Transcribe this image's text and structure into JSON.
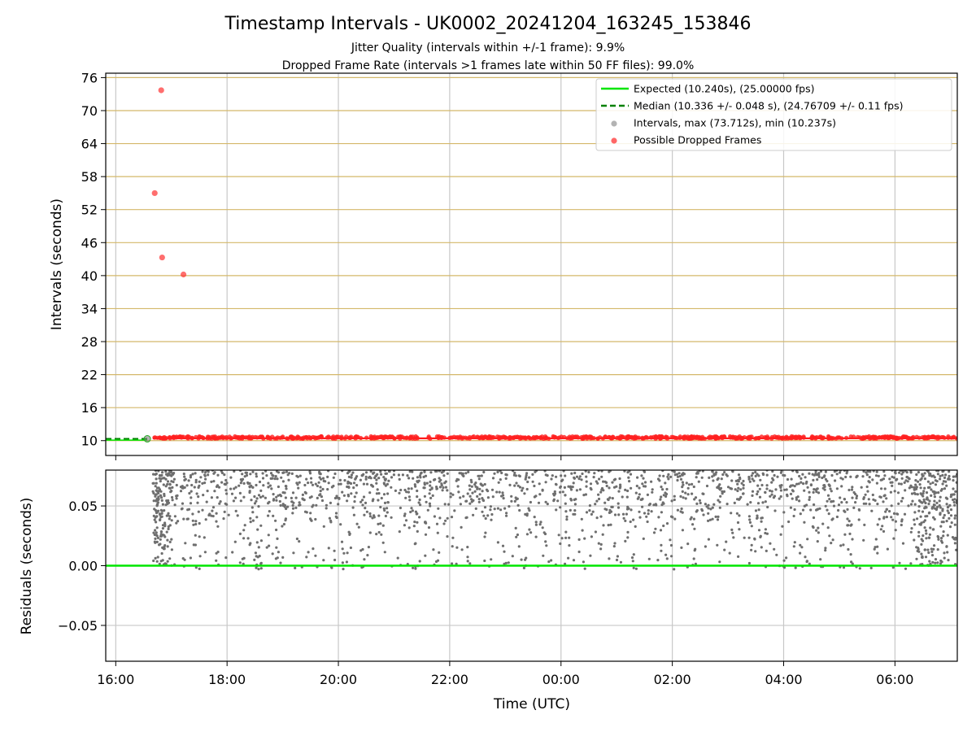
{
  "chart_data": {
    "type": "scatter",
    "title": "Timestamp Intervals - UK0002_20241204_163245_153846",
    "subtitle_1": "Jitter Quality (intervals within +/-1 frame): 9.9%",
    "subtitle_2": "Dropped Frame Rate (intervals >1 frames late within 50 FF files): 99.0%",
    "xlabel": "Time (UTC)",
    "x_ticks": [
      "16:00",
      "18:00",
      "20:00",
      "22:00",
      "00:00",
      "02:00",
      "04:00",
      "06:00"
    ],
    "x_range_hours_from_1600": [
      -0.18,
      15.12
    ],
    "top_panel": {
      "ylabel": "Intervals (seconds)",
      "ylim": [
        7.3,
        76.8
      ],
      "y_ticks": [
        10,
        16,
        22,
        28,
        34,
        40,
        46,
        52,
        58,
        64,
        70,
        76
      ],
      "grid": "horizontal gold lines + vertical grey lines",
      "expected_interval": 10.24,
      "median_interval": 10.336,
      "dropped_frame_points": [
        {
          "time": "16:49",
          "interval": 73.7
        },
        {
          "time": "16:42",
          "interval": 55.0
        },
        {
          "time": "16:50",
          "interval": 43.3
        },
        {
          "time": "17:13",
          "interval": 40.2
        }
      ],
      "dense_band": {
        "from": "16:40",
        "to": "07:07",
        "interval_low": 10.25,
        "interval_high": 10.58
      },
      "legend": {
        "placement": "top-right",
        "entries": [
          {
            "label": "Expected (10.240s), (25.00000 fps)",
            "color": "#00e600",
            "style": "solid"
          },
          {
            "label": "Median (10.336 +/- 0.048 s), (24.76709 +/- 0.11 fps)",
            "color": "#008000",
            "style": "dashed"
          },
          {
            "label": "Intervals, max (73.712s), min (10.237s)",
            "color": "#808080",
            "style": "marker"
          },
          {
            "label": "Possible Dropped Frames",
            "color": "#ff0000",
            "style": "marker"
          }
        ]
      }
    },
    "bottom_panel": {
      "ylabel": "Residuals (seconds)",
      "ylim": [
        -0.08,
        0.08
      ],
      "y_ticks": [
        "0.05",
        "0.00",
        "−0.05"
      ],
      "zero_line_color": "#00e600",
      "residual_range": [
        -0.003,
        0.08
      ]
    }
  }
}
